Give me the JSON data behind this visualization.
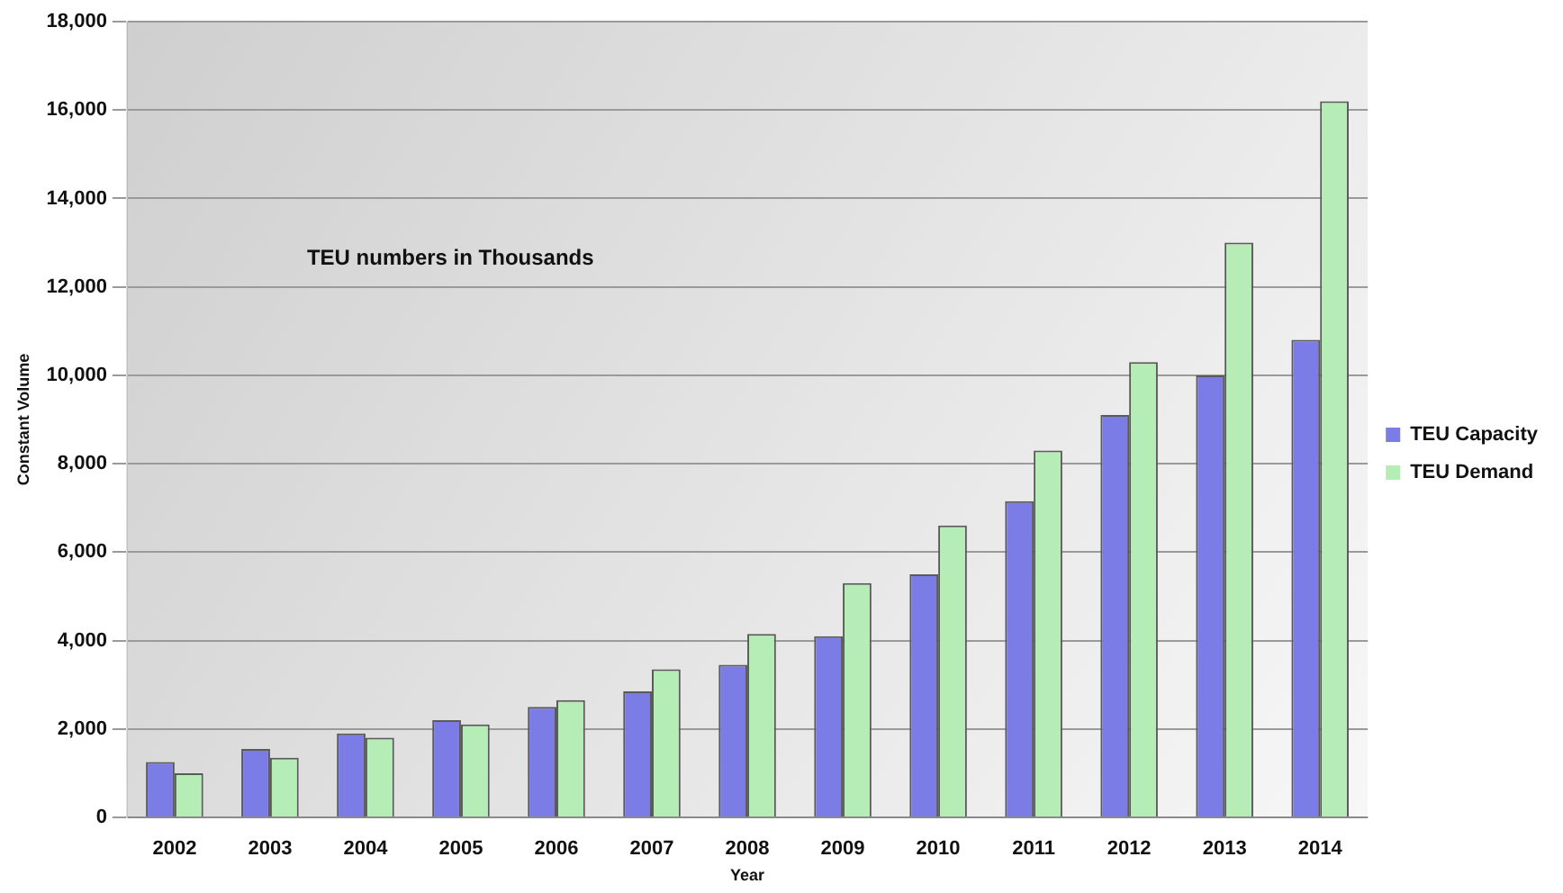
{
  "chart_data": {
    "type": "bar",
    "xlabel": "Year",
    "ylabel": "Constant Volume",
    "categories": [
      "2002",
      "2003",
      "2004",
      "2005",
      "2006",
      "2007",
      "2008",
      "2009",
      "2010",
      "2011",
      "2012",
      "2013",
      "2014"
    ],
    "series": [
      {
        "name": "TEU Capacity",
        "color": "#7c7ce6",
        "values": [
          1250,
          1550,
          1900,
          2200,
          2500,
          2850,
          3450,
          4100,
          5500,
          7150,
          9100,
          10000,
          10800
        ]
      },
      {
        "name": "TEU Demand",
        "color": "#b6ecb6",
        "values": [
          1000,
          1350,
          1800,
          2100,
          2650,
          3350,
          4150,
          5300,
          6600,
          8300,
          10300,
          13000,
          16200
        ]
      }
    ],
    "ylim": [
      0,
      18000
    ],
    "yticks": [
      {
        "value": 0,
        "label": "0"
      },
      {
        "value": 2000,
        "label": "2,000"
      },
      {
        "value": 4000,
        "label": "4,000"
      },
      {
        "value": 6000,
        "label": "6,000"
      },
      {
        "value": 8000,
        "label": "8,000"
      },
      {
        "value": 10000,
        "label": "10,000"
      },
      {
        "value": 12000,
        "label": "12,000"
      },
      {
        "value": 14000,
        "label": "14,000"
      },
      {
        "value": 16000,
        "label": "16,000"
      },
      {
        "value": 18000,
        "label": "18,000"
      }
    ],
    "grid": "y",
    "legend": "right",
    "annotations": [
      "TEU numbers in Thousands"
    ]
  }
}
